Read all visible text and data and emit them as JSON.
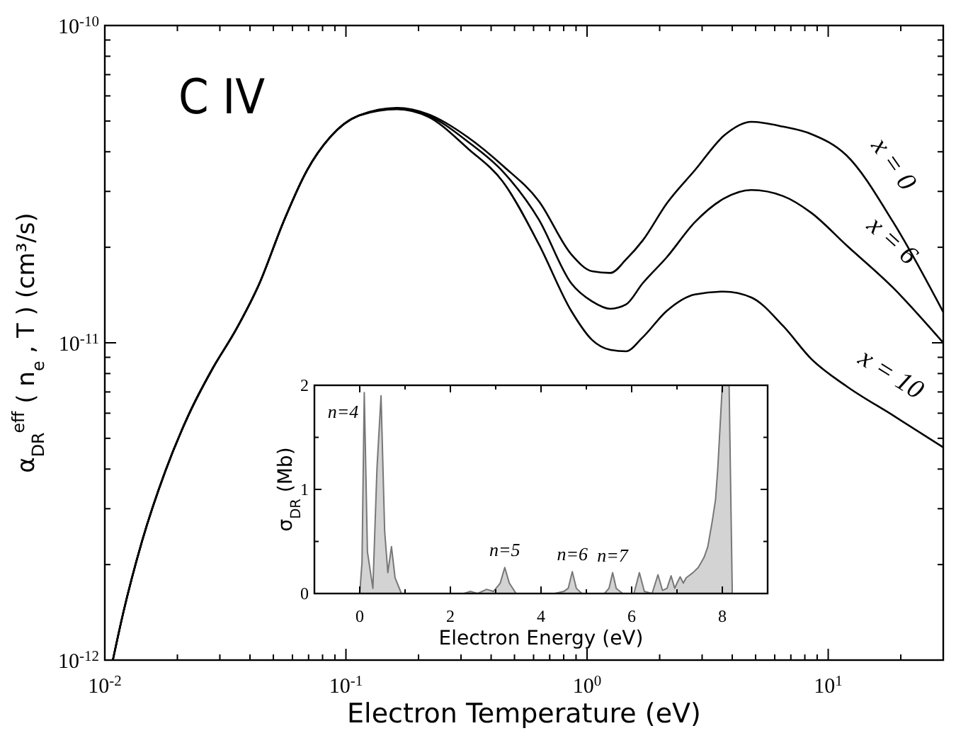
{
  "chart_data": [
    {
      "type": "line",
      "title": "C IV",
      "xlabel": "Electron Temperature  (eV)",
      "ylabel": "α$_{DR}$$^{eff}$ ( n$_{e}$ , T )  (cm³/s)",
      "log": "xy",
      "grid": false,
      "legend": "right",
      "xlim": [
        0.01,
        30
      ],
      "ylim": [
        1e-12,
        1e-10
      ],
      "xticks": [
        {
          "value": 0.01,
          "label": "10$^{-2}$"
        },
        {
          "value": 0.02,
          "label": null
        },
        {
          "value": 0.03,
          "label": null
        },
        {
          "value": 0.04,
          "label": null
        },
        {
          "value": 0.05,
          "label": null
        },
        {
          "value": 0.06,
          "label": null
        },
        {
          "value": 0.07,
          "label": null
        },
        {
          "value": 0.08,
          "label": null
        },
        {
          "value": 0.09,
          "label": null
        },
        {
          "value": 0.1,
          "label": "10$^{-1}$"
        },
        {
          "value": 0.2,
          "label": null
        },
        {
          "value": 0.3,
          "label": null
        },
        {
          "value": 0.4,
          "label": null
        },
        {
          "value": 0.5,
          "label": null
        },
        {
          "value": 0.6,
          "label": null
        },
        {
          "value": 0.7,
          "label": null
        },
        {
          "value": 0.8,
          "label": null
        },
        {
          "value": 0.9,
          "label": null
        },
        {
          "value": 1,
          "label": "10$^{0}$"
        },
        {
          "value": 2,
          "label": null
        },
        {
          "value": 3,
          "label": null
        },
        {
          "value": 4,
          "label": null
        },
        {
          "value": 5,
          "label": null
        },
        {
          "value": 6,
          "label": null
        },
        {
          "value": 7,
          "label": null
        },
        {
          "value": 8,
          "label": null
        },
        {
          "value": 9,
          "label": null
        },
        {
          "value": 10,
          "label": "10$^{1}$"
        },
        {
          "value": 20,
          "label": null
        }
      ],
      "yticks": [
        {
          "value": 1e-12,
          "label": "10$^{-12}$"
        },
        {
          "value": 2e-12,
          "label": null
        },
        {
          "value": 3e-12,
          "label": null
        },
        {
          "value": 4e-12,
          "label": null
        },
        {
          "value": 5e-12,
          "label": null
        },
        {
          "value": 6e-12,
          "label": null
        },
        {
          "value": 7e-12,
          "label": null
        },
        {
          "value": 8e-12,
          "label": null
        },
        {
          "value": 9e-12,
          "label": null
        },
        {
          "value": 1e-11,
          "label": "10$^{-11}$"
        },
        {
          "value": 2e-11,
          "label": null
        },
        {
          "value": 3e-11,
          "label": null
        },
        {
          "value": 4e-11,
          "label": null
        },
        {
          "value": 5e-11,
          "label": null
        },
        {
          "value": 6e-11,
          "label": null
        },
        {
          "value": 7e-11,
          "label": null
        },
        {
          "value": 8e-11,
          "label": null
        },
        {
          "value": 9e-11,
          "label": null
        },
        {
          "value": 1e-10,
          "label": "10$^{-10}$"
        }
      ],
      "x": [
        0.0108,
        0.0119,
        0.0142,
        0.0178,
        0.0222,
        0.028,
        0.035,
        0.0438,
        0.055,
        0.069,
        0.086,
        0.113,
        0.163,
        0.22,
        0.321,
        0.45,
        0.63,
        0.86,
        1.05,
        1.25,
        1.45,
        1.7,
        2.14,
        2.8,
        3.7,
        4.8,
        6.5,
        8.5,
        11.9,
        18.6,
        30
      ],
      "series": [
        {
          "name": "x = 0",
          "color": "#000000",
          "values": [
            1e-12,
            1.4e-12,
            2.34e-12,
            3.93e-12,
            5.9e-12,
            8.3e-12,
            1.1e-11,
            1.54e-11,
            2.4e-11,
            3.5e-11,
            4.45e-11,
            5.2e-11,
            5.5e-11,
            5.25e-11,
            4.44e-11,
            3.6e-11,
            2.8e-11,
            1.9e-11,
            1.68e-11,
            1.66e-11,
            1.83e-11,
            2.1e-11,
            2.75e-11,
            3.5e-11,
            4.5e-11,
            4.97e-11,
            4.8e-11,
            4.55e-11,
            3.9e-11,
            2.4e-11,
            1.25e-11
          ]
        },
        {
          "name": "x = 6",
          "color": "#000000",
          "values": [
            1e-12,
            1.4e-12,
            2.34e-12,
            3.93e-12,
            5.9e-12,
            8.3e-12,
            1.1e-11,
            1.54e-11,
            2.4e-11,
            3.5e-11,
            4.45e-11,
            5.2e-11,
            5.48e-11,
            5.2e-11,
            4.3e-11,
            3.45e-11,
            2.45e-11,
            1.54e-11,
            1.35e-11,
            1.28e-11,
            1.32e-11,
            1.54e-11,
            1.86e-11,
            2.4e-11,
            2.85e-11,
            3.03e-11,
            2.9e-11,
            2.57e-11,
            2.03e-11,
            1.49e-11,
            1e-11
          ]
        },
        {
          "name": "x = 10",
          "color": "#000000",
          "values": [
            1e-12,
            1.4e-12,
            2.34e-12,
            3.93e-12,
            5.9e-12,
            8.3e-12,
            1.1e-11,
            1.54e-11,
            2.4e-11,
            3.5e-11,
            4.45e-11,
            5.2e-11,
            5.45e-11,
            5.15e-11,
            4.09e-11,
            3.2e-11,
            2.05e-11,
            1.26e-11,
            1.02e-11,
            9.5e-12,
            9.4e-12,
            1.04e-11,
            1.26e-11,
            1.42e-11,
            1.45e-11,
            1.39e-11,
            1.13e-11,
            8.9e-12,
            7.3e-12,
            5.9e-12,
            4.68e-12
          ]
        }
      ]
    },
    {
      "type": "area",
      "xlabel": "Electron Energy (eV)",
      "ylabel": "σ$_{DR}$ (Mb)",
      "grid": false,
      "xlim": [
        -1,
        9
      ],
      "ylim": [
        0,
        2
      ],
      "xticks": [
        0,
        {
          "value": 1,
          "label": null
        },
        2,
        {
          "value": 3,
          "label": null
        },
        4,
        {
          "value": 5,
          "label": null
        },
        6,
        {
          "value": 7,
          "label": null
        },
        8
      ],
      "yticks": [
        0,
        {
          "value": 0.5,
          "label": null
        },
        1,
        {
          "value": 1.5,
          "label": null
        },
        2
      ],
      "annotations": [
        {
          "text": "n=4",
          "x": 0.1,
          "y": 1.93
        },
        {
          "text": "n=5",
          "x": 3.2,
          "y": 0.25
        },
        {
          "text": "n=6",
          "x": 4.69,
          "y": 0.21
        },
        {
          "text": "n=7",
          "x": 5.58,
          "y": 0.2
        }
      ],
      "x": [
        -1,
        0,
        0.05,
        0.1,
        0.17,
        0.29,
        0.38,
        0.47,
        0.55,
        0.62,
        0.7,
        0.78,
        0.92,
        2.3,
        2.44,
        2.6,
        2.8,
        2.95,
        3.1,
        3.2,
        3.3,
        3.45,
        4.3,
        4.5,
        4.6,
        4.69,
        4.78,
        4.9,
        5.4,
        5.5,
        5.58,
        5.66,
        5.8,
        6.05,
        6.17,
        6.28,
        6.45,
        6.58,
        6.68,
        6.78,
        6.87,
        6.95,
        7.0,
        7.07,
        7.14,
        7.2,
        7.26,
        7.35,
        7.47,
        7.6,
        7.68,
        7.78,
        7.85,
        7.9,
        7.95,
        8.0,
        8.1,
        8.15,
        8.22,
        9
      ],
      "series": [
        {
          "color": "#d3d3d3",
          "values": [
            0,
            0,
            0.3,
            1.93,
            0.4,
            0.05,
            1.2,
            1.9,
            0.6,
            0.2,
            0.45,
            0.15,
            0,
            0,
            0.02,
            0,
            0.04,
            0.02,
            0.1,
            0.25,
            0.1,
            0,
            0,
            0.02,
            0.05,
            0.21,
            0.05,
            0,
            0,
            0.05,
            0.2,
            0.05,
            0,
            0,
            0.2,
            0.02,
            0,
            0.18,
            0.03,
            0.05,
            0.17,
            0.05,
            0.1,
            0.16,
            0.1,
            0.15,
            0.17,
            0.2,
            0.25,
            0.35,
            0.45,
            0.7,
            0.9,
            1.2,
            1.6,
            2,
            2,
            2,
            0,
            0
          ]
        }
      ]
    }
  ]
}
